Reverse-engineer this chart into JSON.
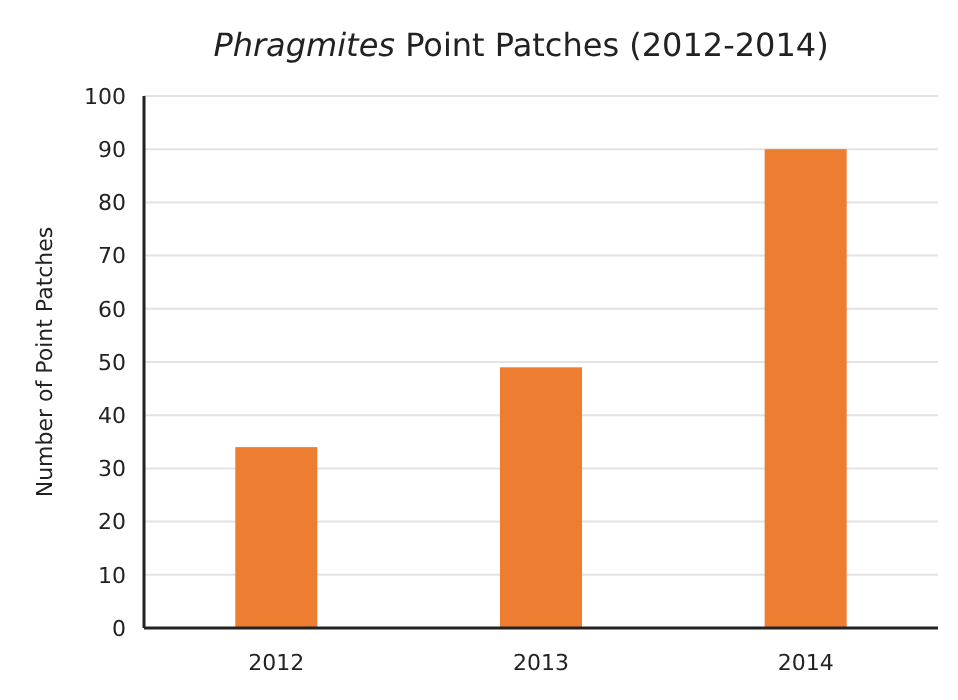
{
  "chart_data": {
    "type": "bar",
    "title": "Phragmites Point Patches (2012-2014)",
    "ylabel": "Number of Point Patches",
    "categories": [
      "2012",
      "2013",
      "2014"
    ],
    "values": [
      34,
      49,
      90
    ],
    "color": "#ed7d31",
    "ylim": [
      0,
      100
    ],
    "yticks": [
      0,
      10,
      20,
      30,
      40,
      50,
      60,
      70,
      80,
      90,
      100
    ],
    "grid": "y"
  }
}
